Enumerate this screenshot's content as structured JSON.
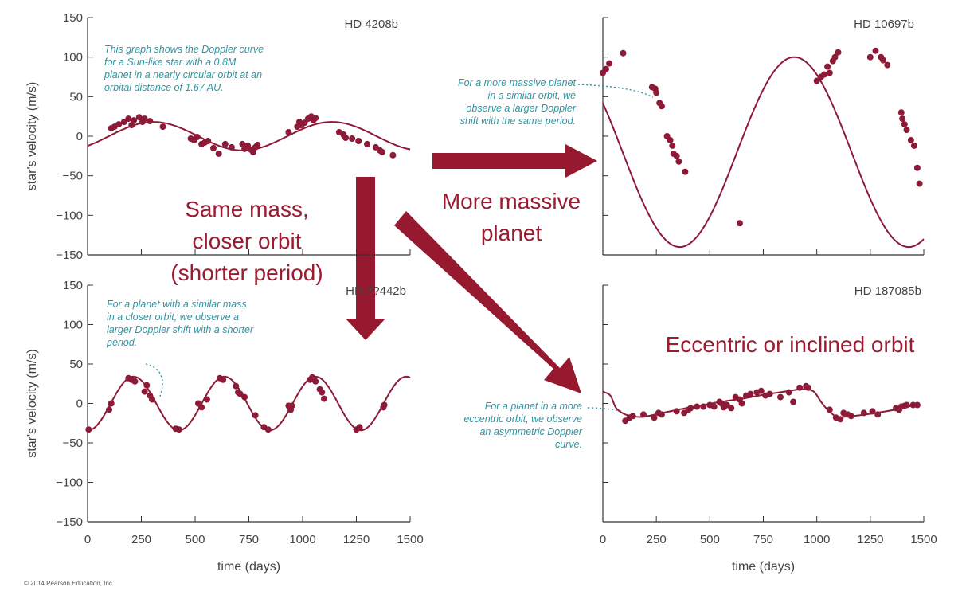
{
  "colors": {
    "curve": "#8d1a37",
    "point": "#8d1a37",
    "annotation": "#2e96a3",
    "arrow": "#96192f",
    "big_text": "#9b1b30",
    "axis": "#333333"
  },
  "figure": {
    "copyright": "© 2014 Pearson Education, Inc.",
    "big_labels": [
      [
        "Same mass,",
        "closer orbit",
        "(shorter period)"
      ],
      [
        "More massive",
        "planet"
      ],
      [
        "Eccentric or inclined orbit"
      ]
    ]
  },
  "chart_data": [
    {
      "type": "scatter",
      "title": "HD 4208b",
      "xlabel": "",
      "ylabel": "star's velocity (m/s)",
      "xlim": [
        0,
        1500
      ],
      "ylim": [
        -150,
        150
      ],
      "yticks": [
        150,
        100,
        50,
        0,
        -50,
        -100,
        -150
      ],
      "ytick_labels": [
        "150",
        "100",
        "50",
        "0",
        "−50",
        "−100",
        "−150"
      ],
      "annotation": [
        "This graph shows the Doppler curve",
        "for a Sun-like star with a 0.8M",
        "planet in a nearly circular orbit at an",
        "orbital distance of 1.67 AU."
      ],
      "curve": {
        "kind": "sine",
        "amplitude": 18,
        "period": 830,
        "phase": -0.75,
        "offset": 0,
        "x_range": [
          0,
          1500
        ]
      },
      "points": [
        [
          110,
          10
        ],
        [
          125,
          12
        ],
        [
          145,
          15
        ],
        [
          170,
          18
        ],
        [
          190,
          22
        ],
        [
          205,
          14
        ],
        [
          215,
          20
        ],
        [
          240,
          24
        ],
        [
          255,
          18
        ],
        [
          265,
          22
        ],
        [
          290,
          19
        ],
        [
          350,
          12
        ],
        [
          480,
          -3
        ],
        [
          495,
          -5
        ],
        [
          510,
          -1
        ],
        [
          530,
          -10
        ],
        [
          545,
          -8
        ],
        [
          560,
          -6
        ],
        [
          585,
          -15
        ],
        [
          610,
          -22
        ],
        [
          640,
          -10
        ],
        [
          670,
          -14
        ],
        [
          720,
          -10
        ],
        [
          730,
          -16
        ],
        [
          745,
          -12
        ],
        [
          760,
          -17
        ],
        [
          770,
          -20
        ],
        [
          780,
          -14
        ],
        [
          790,
          -11
        ],
        [
          935,
          5
        ],
        [
          975,
          12
        ],
        [
          985,
          18
        ],
        [
          995,
          14
        ],
        [
          1010,
          17
        ],
        [
          1025,
          22
        ],
        [
          1040,
          25
        ],
        [
          1050,
          20
        ],
        [
          1060,
          23
        ],
        [
          1170,
          5
        ],
        [
          1190,
          2
        ],
        [
          1200,
          -2
        ],
        [
          1230,
          -3
        ],
        [
          1260,
          -6
        ],
        [
          1300,
          -10
        ],
        [
          1340,
          -14
        ],
        [
          1360,
          -18
        ],
        [
          1370,
          -20
        ],
        [
          1420,
          -24
        ]
      ]
    },
    {
      "type": "scatter",
      "title": "HD 10697b",
      "xlabel": "",
      "ylabel": "",
      "xlim": [
        0,
        1500
      ],
      "ylim": [
        -150,
        150
      ],
      "annotation": [
        "For a more massive planet",
        "in a similar orbit, we",
        "observe a larger Doppler",
        "shift with the same period."
      ],
      "curve": {
        "kind": "sine",
        "amplitude": 120,
        "period": 1070,
        "phase": 2.6,
        "offset": -20,
        "x_range": [
          0,
          1500
        ]
      },
      "points": [
        [
          0,
          80
        ],
        [
          15,
          85
        ],
        [
          30,
          92
        ],
        [
          95,
          105
        ],
        [
          230,
          62
        ],
        [
          245,
          60
        ],
        [
          250,
          55
        ],
        [
          265,
          42
        ],
        [
          275,
          38
        ],
        [
          300,
          0
        ],
        [
          315,
          -5
        ],
        [
          325,
          -12
        ],
        [
          330,
          -22
        ],
        [
          345,
          -25
        ],
        [
          355,
          -32
        ],
        [
          385,
          -45
        ],
        [
          640,
          -110
        ],
        [
          1000,
          70
        ],
        [
          1020,
          75
        ],
        [
          1035,
          78
        ],
        [
          1050,
          88
        ],
        [
          1060,
          80
        ],
        [
          1075,
          95
        ],
        [
          1085,
          100
        ],
        [
          1100,
          106
        ],
        [
          1250,
          100
        ],
        [
          1275,
          108
        ],
        [
          1300,
          100
        ],
        [
          1310,
          96
        ],
        [
          1330,
          90
        ],
        [
          1395,
          30
        ],
        [
          1400,
          22
        ],
        [
          1410,
          15
        ],
        [
          1420,
          8
        ],
        [
          1440,
          -5
        ],
        [
          1455,
          -12
        ],
        [
          1470,
          -40
        ],
        [
          1480,
          -60
        ]
      ]
    },
    {
      "type": "scatter",
      "title": "HD 2?442b",
      "xlabel": "time (days)",
      "ylabel": "star's velocity (m/s)",
      "xlim": [
        0,
        1500
      ],
      "ylim": [
        -150,
        150
      ],
      "xticks": [
        0,
        250,
        500,
        750,
        1000,
        1250,
        1500
      ],
      "xtick_labels": [
        "0",
        "250",
        "500",
        "750",
        "1000",
        "1250",
        "1500"
      ],
      "yticks": [
        150,
        100,
        50,
        0,
        -50,
        -100,
        -150
      ],
      "ytick_labels": [
        "150",
        "100",
        "50",
        "0",
        "−50",
        "−100",
        "−150"
      ],
      "annotation": [
        "For a planet with a similar mass",
        "in a closer orbit, we observe a",
        "larger Doppler shift with a shorter",
        "period."
      ],
      "curve": {
        "kind": "sine",
        "amplitude": 34,
        "period": 423,
        "phase": -1.6,
        "offset": 0,
        "x_range": [
          0,
          1500
        ]
      },
      "points": [
        [
          5,
          -33
        ],
        [
          100,
          -8
        ],
        [
          110,
          0
        ],
        [
          190,
          32
        ],
        [
          205,
          30
        ],
        [
          220,
          28
        ],
        [
          265,
          15
        ],
        [
          275,
          23
        ],
        [
          290,
          10
        ],
        [
          300,
          5
        ],
        [
          410,
          -32
        ],
        [
          425,
          -33
        ],
        [
          515,
          0
        ],
        [
          530,
          -5
        ],
        [
          555,
          5
        ],
        [
          615,
          32
        ],
        [
          630,
          30
        ],
        [
          690,
          22
        ],
        [
          700,
          14
        ],
        [
          710,
          12
        ],
        [
          730,
          8
        ],
        [
          780,
          -15
        ],
        [
          820,
          -30
        ],
        [
          840,
          -33
        ],
        [
          935,
          -3
        ],
        [
          945,
          -8
        ],
        [
          950,
          -3
        ],
        [
          1035,
          30
        ],
        [
          1045,
          33
        ],
        [
          1060,
          28
        ],
        [
          1080,
          18
        ],
        [
          1090,
          14
        ],
        [
          1100,
          6
        ],
        [
          1250,
          -33
        ],
        [
          1265,
          -30
        ],
        [
          1375,
          -5
        ],
        [
          1380,
          -2
        ]
      ]
    },
    {
      "type": "scatter",
      "title": "HD 187085b",
      "xlabel": "time (days)",
      "ylabel": "",
      "xlim": [
        0,
        1500
      ],
      "ylim": [
        -150,
        150
      ],
      "xticks": [
        0,
        250,
        500,
        750,
        1000,
        1250,
        1500
      ],
      "xtick_labels": [
        "0",
        "250",
        "500",
        "750",
        "1000",
        "1250",
        "1500"
      ],
      "annotation": [
        "For a planet in a more",
        "eccentric orbit, we observe",
        "an asymmetric Doppler",
        "curve."
      ],
      "curve_points": [
        [
          0,
          15
        ],
        [
          35,
          10
        ],
        [
          60,
          -5
        ],
        [
          90,
          -12
        ],
        [
          130,
          -16
        ],
        [
          190,
          -17
        ],
        [
          260,
          -13
        ],
        [
          350,
          -8
        ],
        [
          450,
          -3
        ],
        [
          550,
          2
        ],
        [
          650,
          6
        ],
        [
          750,
          11
        ],
        [
          850,
          15
        ],
        [
          920,
          18
        ],
        [
          960,
          18
        ],
        [
          990,
          14
        ],
        [
          1020,
          2
        ],
        [
          1050,
          -8
        ],
        [
          1080,
          -15
        ],
        [
          1100,
          -18
        ],
        [
          1130,
          -17
        ],
        [
          1200,
          -15
        ],
        [
          1300,
          -11
        ],
        [
          1400,
          -6
        ],
        [
          1480,
          0
        ]
      ],
      "points": [
        [
          105,
          -22
        ],
        [
          125,
          -18
        ],
        [
          140,
          -16
        ],
        [
          190,
          -14
        ],
        [
          240,
          -18
        ],
        [
          260,
          -12
        ],
        [
          275,
          -14
        ],
        [
          345,
          -10
        ],
        [
          380,
          -12
        ],
        [
          400,
          -8
        ],
        [
          410,
          -6
        ],
        [
          440,
          -4
        ],
        [
          470,
          -4
        ],
        [
          500,
          -2
        ],
        [
          520,
          -4
        ],
        [
          545,
          2
        ],
        [
          555,
          0
        ],
        [
          565,
          -5
        ],
        [
          580,
          -2
        ],
        [
          600,
          -6
        ],
        [
          620,
          8
        ],
        [
          640,
          5
        ],
        [
          650,
          0
        ],
        [
          670,
          10
        ],
        [
          690,
          12
        ],
        [
          720,
          14
        ],
        [
          740,
          16
        ],
        [
          760,
          10
        ],
        [
          780,
          12
        ],
        [
          830,
          8
        ],
        [
          870,
          14
        ],
        [
          890,
          2
        ],
        [
          920,
          20
        ],
        [
          950,
          22
        ],
        [
          960,
          20
        ],
        [
          1060,
          -8
        ],
        [
          1090,
          -18
        ],
        [
          1110,
          -20
        ],
        [
          1125,
          -12
        ],
        [
          1145,
          -14
        ],
        [
          1160,
          -16
        ],
        [
          1220,
          -12
        ],
        [
          1260,
          -10
        ],
        [
          1285,
          -14
        ],
        [
          1370,
          -6
        ],
        [
          1385,
          -8
        ],
        [
          1395,
          -4
        ],
        [
          1410,
          -3
        ],
        [
          1420,
          -2
        ],
        [
          1450,
          -2
        ],
        [
          1470,
          -2
        ]
      ]
    }
  ]
}
